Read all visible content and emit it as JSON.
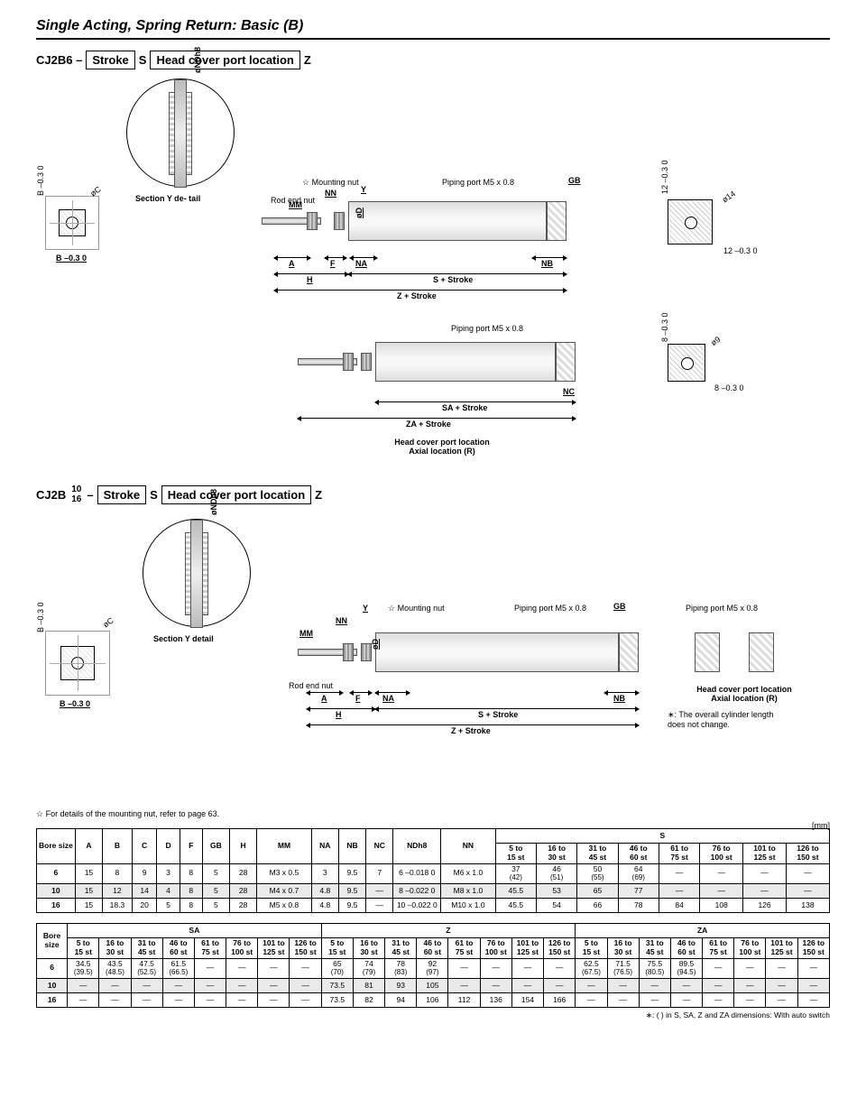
{
  "page": {
    "title": "Single Acting, Spring Return: Basic (B)",
    "unit_label": "[mm]",
    "note_mounting_nut": "☆ For details of the mounting nut, refer to page 63.",
    "footnote_autoswitch": "∗: ( ) in S, SA, Z and ZA dimensions: With auto switch"
  },
  "model1": {
    "prefix": "CJ2B6 –",
    "box1": "Stroke",
    "s": "S",
    "box2": "Head cover port location",
    "z": "Z"
  },
  "model2": {
    "prefix": "CJ2B",
    "frac_top": "10",
    "frac_bot": "16",
    "dash": "–",
    "box1": "Stroke",
    "s": "S",
    "box2": "Head cover port location",
    "z": "Z"
  },
  "diagram_labels": {
    "section_y": "Section Y detail",
    "section_y_short": "Section Y de-\ntail",
    "ndh8": "øNDh8",
    "b_tol": "B –0.3 0",
    "c_dia": "øC",
    "mounting_nut": "☆ Mounting nut",
    "piping_port": "Piping port M5 x 0.8",
    "rod_end_nut": "Rod end nut",
    "gb": "GB",
    "nn": "NN",
    "mm": "MM",
    "y": "Y",
    "od": "øD",
    "a": "A",
    "f": "F",
    "na": "NA",
    "nb": "NB",
    "nc": "NC",
    "h": "H",
    "s_stroke": "S + Stroke",
    "z_stroke": "Z + Stroke",
    "sa_stroke": "SA + Stroke",
    "za_stroke": "ZA + Stroke",
    "head_axial_title": "Head cover port location\nAxial location (R)",
    "head_axial_note": "∗: The overall cylinder length\n   does not change.",
    "dim12": "12 –0.3 0",
    "dim8": "8 –0.3 0",
    "dia14": "ø14",
    "dia9": "ø9"
  },
  "table1": {
    "headers_main": [
      "Bore size",
      "A",
      "B",
      "C",
      "D",
      "F",
      "GB",
      "H",
      "MM",
      "NA",
      "NB",
      "NC",
      "NDh8",
      "NN"
    ],
    "s_group": "S",
    "s_cols": [
      "5 to\n15 st",
      "16 to\n30 st",
      "31 to\n45 st",
      "46 to\n60 st",
      "61 to\n75 st",
      "76 to\n100 st",
      "101 to\n125 st",
      "126 to\n150 st"
    ],
    "rows": [
      {
        "bore": "6",
        "cells": [
          "15",
          "8",
          "9",
          "3",
          "8",
          "5",
          "28",
          "M3 x 0.5",
          "3",
          "9.5",
          "7",
          "6 –0.018 0",
          "M6 x 1.0"
        ],
        "s": [
          "37\n(42)",
          "46\n(51)",
          "50\n(55)",
          "64\n(69)",
          "—",
          "—",
          "—",
          "—"
        ]
      },
      {
        "bore": "10",
        "shade": true,
        "cells": [
          "15",
          "12",
          "14",
          "4",
          "8",
          "5",
          "28",
          "M4 x 0.7",
          "4.8",
          "9.5",
          "—",
          "8 –0.022 0",
          "M8 x 1.0"
        ],
        "s": [
          "45.5",
          "53",
          "65",
          "77",
          "—",
          "—",
          "—",
          "—"
        ]
      },
      {
        "bore": "16",
        "cells": [
          "15",
          "18.3",
          "20",
          "5",
          "8",
          "5",
          "28",
          "M5 x 0.8",
          "4.8",
          "9.5",
          "—",
          "10 –0.022 0",
          "M10 x 1.0"
        ],
        "s": [
          "45.5",
          "54",
          "66",
          "78",
          "84",
          "108",
          "126",
          "138"
        ]
      }
    ]
  },
  "table2": {
    "groups": [
      "SA",
      "Z",
      "ZA"
    ],
    "cols": [
      "5 to\n15 st",
      "16 to\n30 st",
      "31 to\n45 st",
      "46 to\n60 st",
      "61 to\n75 st",
      "76 to\n100 st",
      "101 to\n125 st",
      "126 to\n150 st"
    ],
    "rows": [
      {
        "bore": "6",
        "sa": [
          "34.5\n(39.5)",
          "43.5\n(48.5)",
          "47.5\n(52.5)",
          "61.5\n(66.5)",
          "—",
          "—",
          "—",
          "—"
        ],
        "z": [
          "65\n(70)",
          "74\n(79)",
          "78\n(83)",
          "92\n(97)",
          "—",
          "—",
          "—",
          "—"
        ],
        "za": [
          "62.5\n(67.5)",
          "71.5\n(76.5)",
          "75.5\n(80.5)",
          "89.5\n(94.5)",
          "—",
          "—",
          "—",
          "—"
        ]
      },
      {
        "bore": "10",
        "shade": true,
        "sa": [
          "—",
          "—",
          "—",
          "—",
          "—",
          "—",
          "—",
          "—"
        ],
        "z": [
          "73.5",
          "81",
          "93",
          "105",
          "—",
          "—",
          "—",
          "—"
        ],
        "za": [
          "—",
          "—",
          "—",
          "—",
          "—",
          "—",
          "—",
          "—"
        ]
      },
      {
        "bore": "16",
        "sa": [
          "—",
          "—",
          "—",
          "—",
          "—",
          "—",
          "—",
          "—"
        ],
        "z": [
          "73.5",
          "82",
          "94",
          "106",
          "112",
          "136",
          "154",
          "166"
        ],
        "za": [
          "—",
          "—",
          "—",
          "—",
          "—",
          "—",
          "—",
          "—"
        ]
      }
    ]
  }
}
